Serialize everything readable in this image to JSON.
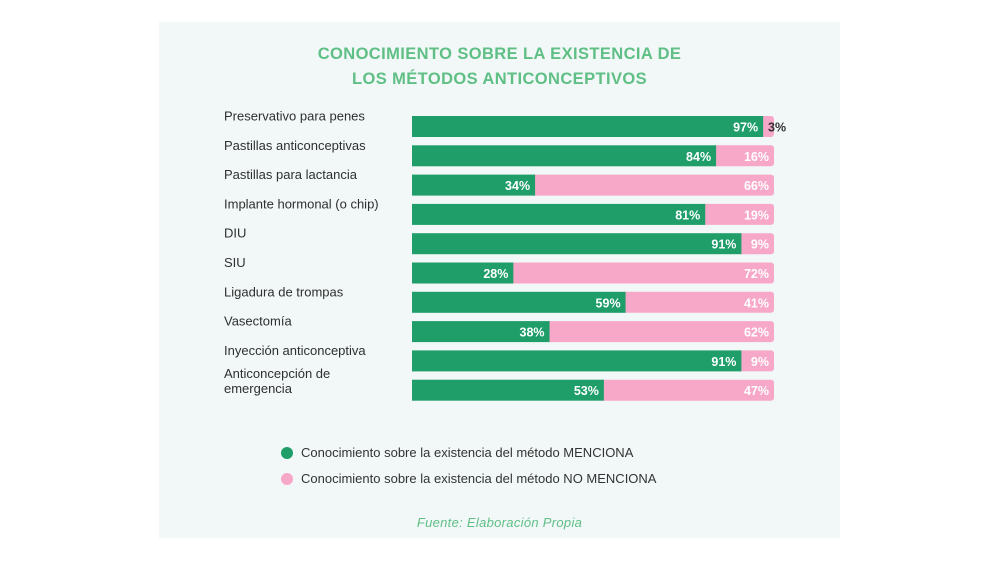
{
  "chart_data": {
    "type": "bar",
    "orientation": "horizontal",
    "stacked": true,
    "title_lines": [
      "CONOCIMIENTO SOBRE LA EXISTENCIA DE",
      "LOS MÉTODOS ANTICONCEPTIVOS"
    ],
    "categories": [
      [
        "Preservativo para penes"
      ],
      [
        "Pastillas anticonceptivas"
      ],
      [
        "Pastillas para lactancia"
      ],
      [
        "Implante hormonal (o chip)"
      ],
      [
        "DIU"
      ],
      [
        "SIU"
      ],
      [
        "Ligadura de trompas"
      ],
      [
        "Vasectomía"
      ],
      [
        "Inyección anticonceptiva"
      ],
      [
        "Anticoncepción de",
        "emergencia"
      ]
    ],
    "series": [
      {
        "name": "Conocimiento sobre la existencia del método MENCIONA",
        "color": "#1f9e6a",
        "values": [
          97,
          84,
          34,
          81,
          91,
          28,
          59,
          38,
          91,
          53
        ]
      },
      {
        "name": "Conocimiento sobre la existencia del método NO MENCIONA",
        "color": "#f7a8c9",
        "values": [
          3,
          16,
          66,
          19,
          9,
          72,
          41,
          62,
          9,
          47
        ]
      }
    ],
    "value_suffix": "%",
    "xlim": [
      0,
      100
    ],
    "grid": false,
    "legend_position": "bottom",
    "source": "Fuente: Elaboración Propia"
  }
}
